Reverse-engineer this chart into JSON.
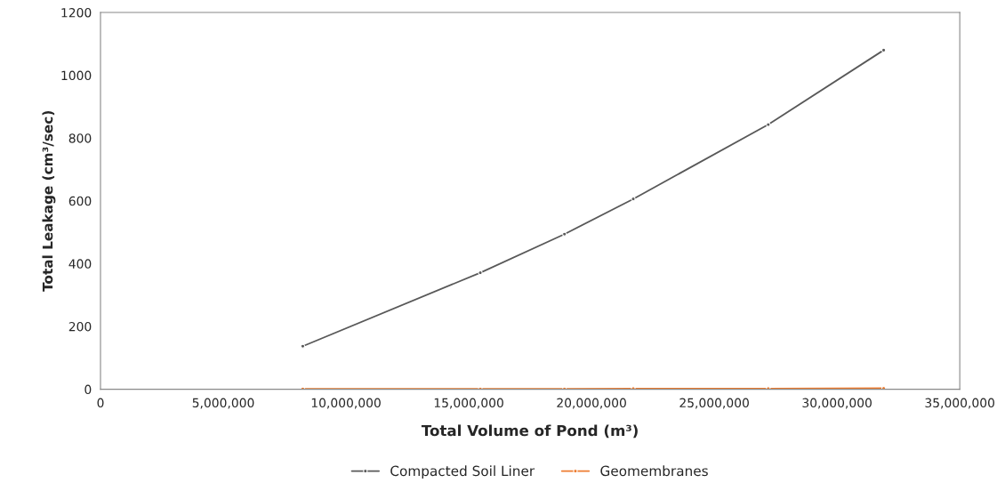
{
  "chart_data": {
    "type": "line",
    "xlabel": "Total Volume of Pond (m³)",
    "ylabel": "Total Leakage (cm³/sec)",
    "xlim": [
      0,
      35000000
    ],
    "ylim": [
      0,
      1200
    ],
    "xticks": [
      {
        "value": 0,
        "label": "0"
      },
      {
        "value": 5000000,
        "label": "5,000,000"
      },
      {
        "value": 10000000,
        "label": "10,000,000"
      },
      {
        "value": 15000000,
        "label": "15,000,000"
      },
      {
        "value": 20000000,
        "label": "20,000,000"
      },
      {
        "value": 25000000,
        "label": "25,000,000"
      },
      {
        "value": 30000000,
        "label": "30,000,000"
      },
      {
        "value": 35000000,
        "label": "35,000,000"
      }
    ],
    "yticks": [
      0,
      200,
      400,
      600,
      800,
      1000,
      1200
    ],
    "grid": false,
    "legend": "bottom",
    "marker": "circle",
    "series": [
      {
        "name": "Compacted Soil Liner",
        "color": "#595959",
        "x": [
          8240000,
          15470000,
          18900000,
          21700000,
          27200000,
          31900000
        ],
        "values": [
          137,
          371,
          494,
          606,
          843,
          1080
        ]
      },
      {
        "name": "Geomembranes",
        "color": "#ed7d31",
        "x": [
          8240000,
          15470000,
          18900000,
          21700000,
          27200000,
          31900000
        ],
        "values": [
          1,
          1,
          1,
          2,
          2,
          3
        ]
      }
    ]
  }
}
